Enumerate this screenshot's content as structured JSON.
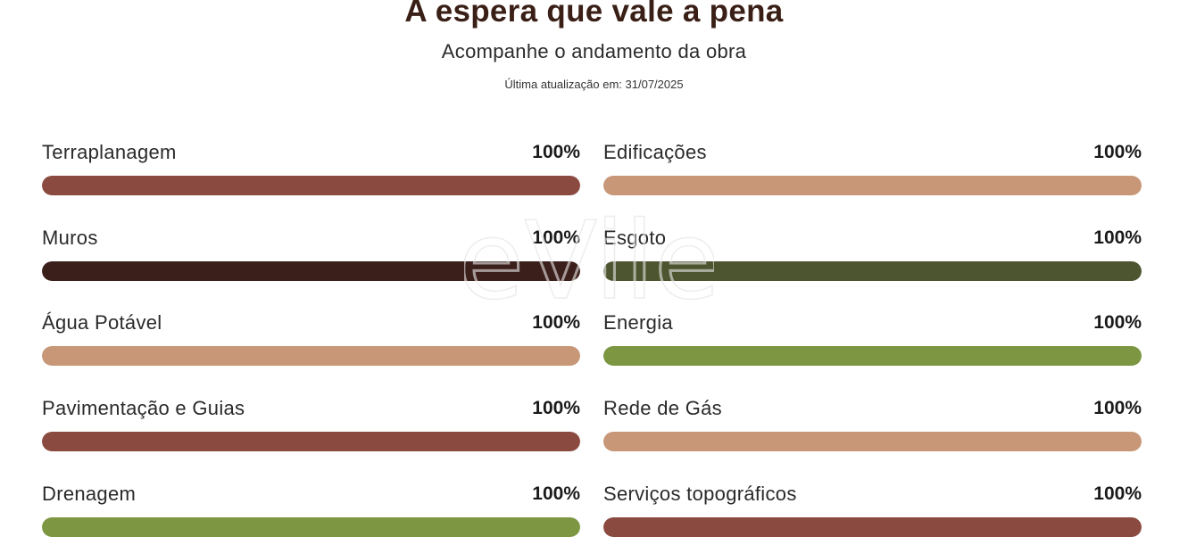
{
  "header": {
    "title": "A espera que vale a pena",
    "subtitle": "Acompanhe o andamento da obra",
    "updated": "Última atualização em: 31/07/2025"
  },
  "watermark": {
    "text": "eVile"
  },
  "colors": {
    "title": "#3a1f16",
    "brown": "#8b4a3f",
    "dark_brown": "#3b1f1b",
    "tan": "#c79777",
    "olive": "#4c5530",
    "green": "#7c9641"
  },
  "progress": [
    {
      "label": "Terraplanagem",
      "value_text": "100%",
      "percent": 100,
      "color": "#8b4a3f"
    },
    {
      "label": "Edificações",
      "value_text": "100%",
      "percent": 100,
      "color": "#c79777"
    },
    {
      "label": "Muros",
      "value_text": "100%",
      "percent": 100,
      "color": "#3b1f1b"
    },
    {
      "label": "Esgoto",
      "value_text": "100%",
      "percent": 100,
      "color": "#4c5530"
    },
    {
      "label": "Água Potável",
      "value_text": "100%",
      "percent": 100,
      "color": "#c79777"
    },
    {
      "label": "Energia",
      "value_text": "100%",
      "percent": 100,
      "color": "#7c9641"
    },
    {
      "label": "Pavimentação e Guias",
      "value_text": "100%",
      "percent": 100,
      "color": "#8b4a3f"
    },
    {
      "label": "Rede de Gás",
      "value_text": "100%",
      "percent": 100,
      "color": "#c79777"
    },
    {
      "label": "Drenagem",
      "value_text": "100%",
      "percent": 100,
      "color": "#7c9641"
    },
    {
      "label": "Serviços topográficos",
      "value_text": "100%",
      "percent": 100,
      "color": "#8b4a3f"
    }
  ]
}
